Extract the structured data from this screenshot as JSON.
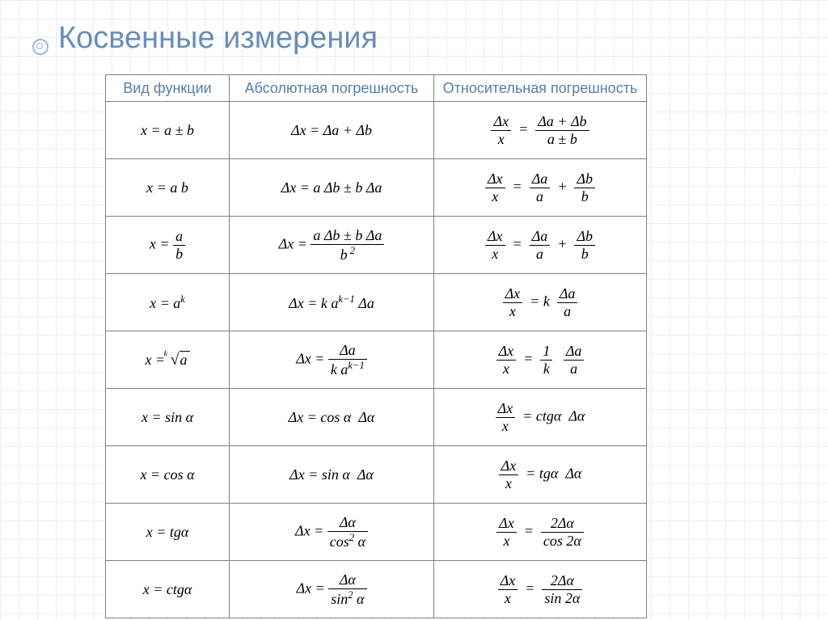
{
  "title": "Косвенные измерения",
  "headers": {
    "h1": "Вид функции",
    "h2": "Абсолютная погрешность",
    "h3": "Относительная погрешность"
  },
  "rows": [
    {
      "func": "x = a ± b",
      "abs": "Δx = Δa + Δb",
      "rel": "Δx / x = (Δa + Δb) / (a ± b)"
    },
    {
      "func": "x = a b",
      "abs": "Δx = a Δb ± b Δa",
      "rel": "Δx / x = Δa/a + Δb/b"
    },
    {
      "func": "x = a / b",
      "abs": "Δx = (a Δb ± b Δa) / b²",
      "rel": "Δx / x = Δa/a + Δb/b"
    },
    {
      "func": "x = aᵏ",
      "abs": "Δx = k aᵏ⁻¹ Δa",
      "rel": "Δx / x = k Δa/a"
    },
    {
      "func": "x = ᵏ√a",
      "abs": "Δx = Δa / (k aᵏ⁻¹)",
      "rel": "Δx / x = (1/k) Δa/a"
    },
    {
      "func": "x = sin α",
      "abs": "Δx = cos α · Δα",
      "rel": "Δx / x = ctg α · Δα"
    },
    {
      "func": "x = cos α",
      "abs": "Δx = sin α · Δα",
      "rel": "Δx / x = tg α · Δα"
    },
    {
      "func": "x = tg α",
      "abs": "Δx = Δα / cos² α",
      "rel": "Δx / x = 2Δα / cos 2α"
    },
    {
      "func": "x = ctg α",
      "abs": "Δx = Δα / sin² α",
      "rel": "Δx / x = 2Δα / sin 2α"
    }
  ],
  "colors": {
    "title": "#6a8db8",
    "header_text": "#5a7da8",
    "grid": "#e8eef5",
    "border": "#808080"
  }
}
